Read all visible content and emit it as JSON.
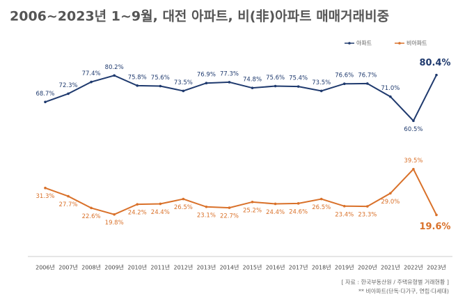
{
  "chart_data": {
    "type": "line",
    "title": "2006~2023년 1~9월, 대전 아파트, 비(非)아파트 매매거래비중",
    "categories": [
      "2006년",
      "2007년",
      "2008년",
      "2009년",
      "2010년",
      "2011년",
      "2012년",
      "2013년",
      "2014년",
      "2015년",
      "2016년",
      "2017년",
      "2018년",
      "2019년",
      "2020년",
      "2021년",
      "2022년",
      "2023년"
    ],
    "series": [
      {
        "name": "아파트",
        "color": "#1f3a6e",
        "values": [
          68.7,
          72.3,
          77.4,
          80.2,
          75.8,
          75.6,
          73.5,
          76.9,
          77.3,
          74.8,
          75.6,
          75.4,
          73.5,
          76.6,
          76.7,
          71.0,
          60.5,
          80.4
        ],
        "value_labels": [
          "68.7%",
          "72.3%",
          "77.4%",
          "80.2%",
          "75.8%",
          "75.6%",
          "73.5%",
          "76.9%",
          "77.3%",
          "74.8%",
          "75.6%",
          "75.4%",
          "73.5%",
          "76.6%",
          "76.7%",
          "71.0%",
          "60.5%",
          "80.4%"
        ]
      },
      {
        "name": "비아파트",
        "color": "#d9712a",
        "values": [
          31.3,
          27.7,
          22.6,
          19.8,
          24.2,
          24.4,
          26.5,
          23.1,
          22.7,
          25.2,
          24.4,
          24.6,
          26.5,
          23.4,
          23.3,
          29.0,
          39.5,
          19.6
        ],
        "value_labels": [
          "31.3%",
          "27.7%",
          "22.6%",
          "19.8%",
          "24.2%",
          "24.4%",
          "26.5%",
          "23.1%",
          "22.7%",
          "25.2%",
          "24.4%",
          "24.6%",
          "26.5%",
          "23.4%",
          "23.3%",
          "29.0%",
          "39.5%",
          "19.6%"
        ]
      }
    ],
    "ylim": [
      10,
      90
    ],
    "legend": "top-right",
    "source": "[ 자료 : 한국부동산원 / 주택유형별 거래현황 ]",
    "note": "** 비아파트(단독·다가구, 연립·다세대)"
  }
}
